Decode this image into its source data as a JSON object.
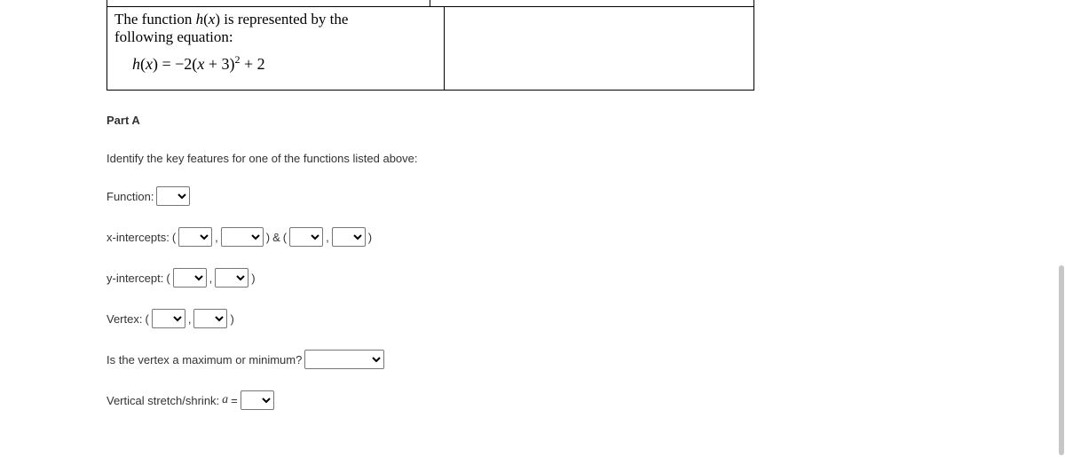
{
  "box": {
    "line1": "The function ",
    "fn_name": "h",
    "line1b": "(",
    "var": "x",
    "line1c": ") is represented by the",
    "line2": "following equation:",
    "eq_lhs_fn": "h",
    "eq_lhs_open": "(",
    "eq_lhs_var": "x",
    "eq_lhs_close": ") = ",
    "eq_rhs_a": "−2(",
    "eq_rhs_var": "x",
    "eq_rhs_b": " + 3)",
    "eq_rhs_exp": "2",
    "eq_rhs_c": " + 2"
  },
  "partA": {
    "heading": "Part A",
    "instruction": "Identify the key features for one of the functions listed above:",
    "labels": {
      "function": "Function:",
      "xint": "x-intercepts:",
      "yint": "y-intercept:",
      "vertex": "Vertex:",
      "maxmin": "Is the vertex a maximum or minimum?",
      "stretch_pre": "Vertical stretch/shrink: ",
      "stretch_var": "a",
      "stretch_eq": " ="
    },
    "paren_open": "(",
    "paren_close": ")",
    "amp": " & ",
    "comma": ","
  },
  "tick_positions": [
    0,
    37,
    74,
    111,
    148,
    185,
    222,
    259,
    296,
    333
  ]
}
